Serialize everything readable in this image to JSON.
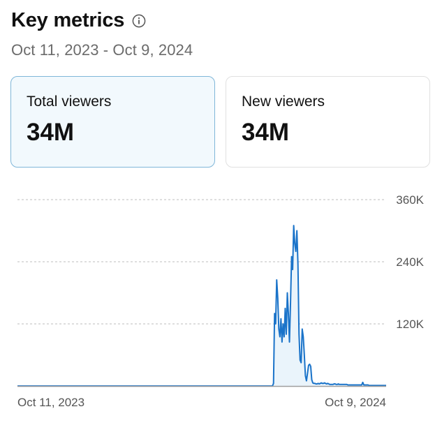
{
  "header": {
    "title": "Key metrics",
    "info_icon": "info-icon",
    "date_range": "Oct 11, 2023 - Oct 9, 2024"
  },
  "cards": [
    {
      "label": "Total viewers",
      "value": "34M",
      "selected": true
    },
    {
      "label": "New viewers",
      "value": "34M",
      "selected": false
    }
  ],
  "colors": {
    "line": "#1a73c9",
    "area": "#eaf4fb",
    "selected_card_bg": "#f2f9fd",
    "selected_card_border": "#7fb6d8",
    "grid": "#bdbdbd",
    "axis": "#9e9e9e"
  },
  "chart_data": {
    "type": "area",
    "x_start_label": "Oct 11, 2023",
    "x_end_label": "Oct 9, 2024",
    "yticks": [
      "120K",
      "240K",
      "360K"
    ],
    "ylim": [
      0,
      360000
    ],
    "grid": "dashed-horizontal",
    "series": [
      {
        "values": [
          0,
          0,
          0,
          0,
          0,
          0,
          0,
          0,
          0,
          0,
          0,
          0,
          0,
          0,
          0,
          0,
          0,
          0,
          0,
          0,
          0,
          0,
          0,
          0,
          0,
          0,
          0,
          0,
          0,
          0,
          0,
          0,
          0,
          0,
          0,
          0,
          0,
          0,
          0,
          0,
          0,
          0,
          0,
          0,
          0,
          0,
          0,
          0,
          0,
          0,
          0,
          0,
          0,
          0,
          0,
          0,
          0,
          0,
          0,
          0,
          0,
          0,
          0,
          0,
          0,
          0,
          0,
          0,
          0,
          0,
          0,
          0,
          0,
          0,
          0,
          0,
          0,
          0,
          0,
          0,
          0,
          0,
          0,
          0,
          0,
          0,
          0,
          0,
          0,
          0,
          0,
          0,
          0,
          0,
          0,
          0,
          0,
          0,
          0,
          0,
          0,
          0,
          0,
          0,
          0,
          0,
          0,
          0,
          0,
          0,
          0,
          0,
          0,
          0,
          0,
          0,
          0,
          0,
          0,
          0,
          0,
          0,
          0,
          0,
          0,
          0,
          0,
          0,
          0,
          0,
          0,
          0,
          0,
          0,
          0,
          0,
          0,
          0,
          0,
          0,
          0,
          0,
          0,
          0,
          0,
          0,
          0,
          0,
          0,
          0,
          0,
          0,
          0,
          0,
          0,
          0,
          0,
          0,
          0,
          0,
          0,
          0,
          0,
          0,
          0,
          0,
          0,
          0,
          0,
          0,
          0,
          0,
          0,
          0,
          0,
          0,
          0,
          0,
          0,
          0,
          0,
          0,
          0,
          0,
          0,
          0,
          0,
          0,
          0,
          0,
          0,
          0,
          0,
          0,
          0,
          0,
          0,
          0,
          0,
          0,
          0,
          0,
          0,
          0,
          0,
          0,
          0,
          0,
          0,
          0,
          0,
          0,
          0,
          0,
          0,
          0,
          0,
          0,
          0,
          0,
          0,
          0,
          0,
          0,
          0,
          0,
          0,
          0,
          0,
          0,
          0,
          0,
          0,
          0,
          0,
          0,
          0,
          0,
          0,
          0,
          0,
          5000,
          140000,
          120000,
          205000,
          170000,
          110000,
          95000,
          130000,
          85000,
          120000,
          95000,
          150000,
          100000,
          180000,
          140000,
          85000,
          160000,
          250000,
          225000,
          310000,
          275000,
          260000,
          300000,
          235000,
          100000,
          50000,
          45000,
          110000,
          95000,
          60000,
          20000,
          10000,
          25000,
          40000,
          42000,
          38000,
          12000,
          6000,
          5000,
          5000,
          4000,
          4000,
          5000,
          4000,
          5000,
          6000,
          5000,
          5000,
          6000,
          5000,
          4000,
          5000,
          4000,
          3000,
          3000,
          3000,
          3000,
          4000,
          4000,
          3000,
          3000,
          4000,
          3000,
          3000,
          3000,
          3000,
          3000,
          3000,
          3000,
          3000,
          2000,
          2000,
          2000,
          2000,
          2000,
          2000,
          2000,
          2000,
          2000,
          2000,
          2000,
          2000,
          2000,
          2000,
          7000,
          2000,
          2000,
          2000,
          2000,
          2000,
          1000,
          1000,
          1000,
          1000,
          1000,
          1000,
          1000,
          1000,
          1000,
          1000,
          1000,
          1000,
          1000,
          1000,
          1000,
          1000,
          1000
        ]
      }
    ]
  }
}
